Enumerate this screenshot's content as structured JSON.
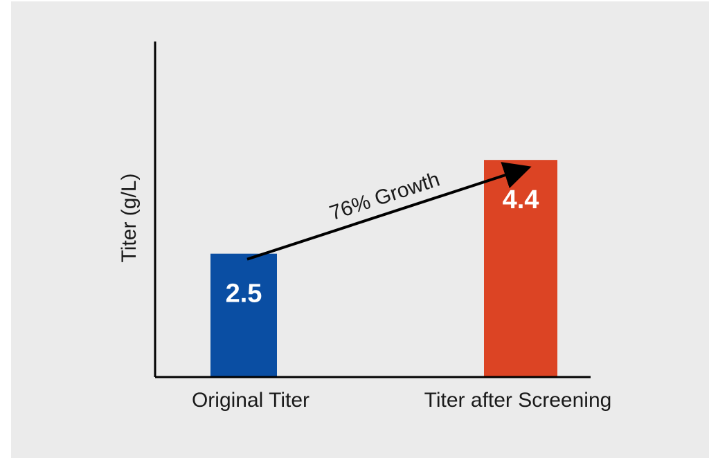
{
  "chart_data": {
    "type": "bar",
    "categories": [
      "Original Titer",
      "Titer after Screening"
    ],
    "values": [
      2.5,
      4.4
    ],
    "value_labels": [
      "2.5",
      "4.4"
    ],
    "colors": [
      "#0a4ea3",
      "#dc4424"
    ],
    "ylabel": "Titer (g/L)",
    "xlabel": "",
    "title": "",
    "ylim": [
      0,
      6.8
    ],
    "grid": false,
    "annotation": {
      "text": "76% Growth",
      "from": "Original Titer",
      "to": "Titer after Screening"
    }
  }
}
